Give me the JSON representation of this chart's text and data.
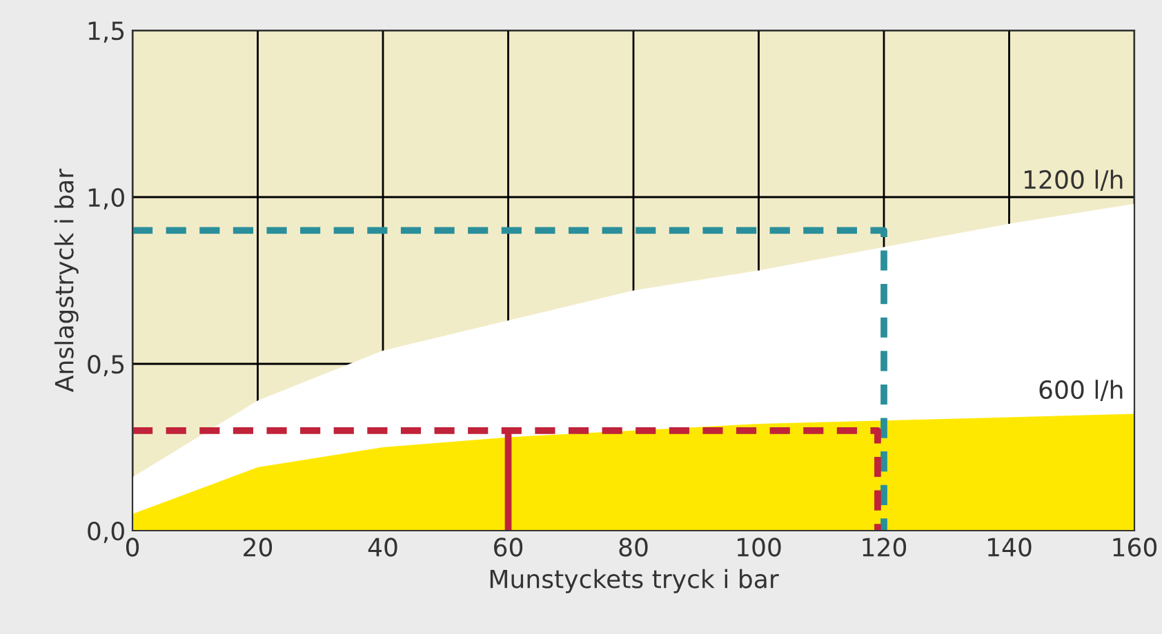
{
  "chart_data": {
    "type": "area",
    "xlabel": "Munstyckets tryck i bar",
    "ylabel": "Anslagstryck i bar",
    "x": [
      0,
      20,
      40,
      60,
      80,
      100,
      120,
      140,
      160
    ],
    "xlim": [
      0,
      160
    ],
    "xticks": [
      0,
      20,
      40,
      60,
      80,
      100,
      120,
      140,
      160
    ],
    "ylim": [
      0,
      1.5
    ],
    "yticks": [
      {
        "value": 0,
        "label": "0,0"
      },
      {
        "value": 0.5,
        "label": "0,5"
      },
      {
        "value": 1.0,
        "label": "1,0"
      },
      {
        "value": 1.5,
        "label": "1,5"
      }
    ],
    "grid": true,
    "legend": false,
    "series": [
      {
        "name": "1200 l/h",
        "color": "#ffffff",
        "values": [
          0.16,
          0.39,
          0.54,
          0.63,
          0.72,
          0.78,
          0.85,
          0.92,
          0.98
        ]
      },
      {
        "name": "600 l/h",
        "color": "#ffe800",
        "values": [
          0.05,
          0.19,
          0.25,
          0.28,
          0.3,
          0.32,
          0.33,
          0.34,
          0.35
        ]
      },
      {
        "type": "line",
        "color": "#2a8f9a",
        "line_style": "dashed",
        "x": [
          0,
          120,
          120
        ],
        "values": [
          0.9,
          0.9,
          0
        ]
      },
      {
        "type": "line",
        "color": "#c0233a",
        "line_style": "dashed",
        "x": [
          0,
          119,
          119
        ],
        "values": [
          0.3,
          0.3,
          0
        ]
      },
      {
        "type": "line",
        "color": "#c0233a",
        "line_style": "solid",
        "x": [
          60,
          60
        ],
        "values": [
          0,
          0.3
        ]
      }
    ]
  }
}
